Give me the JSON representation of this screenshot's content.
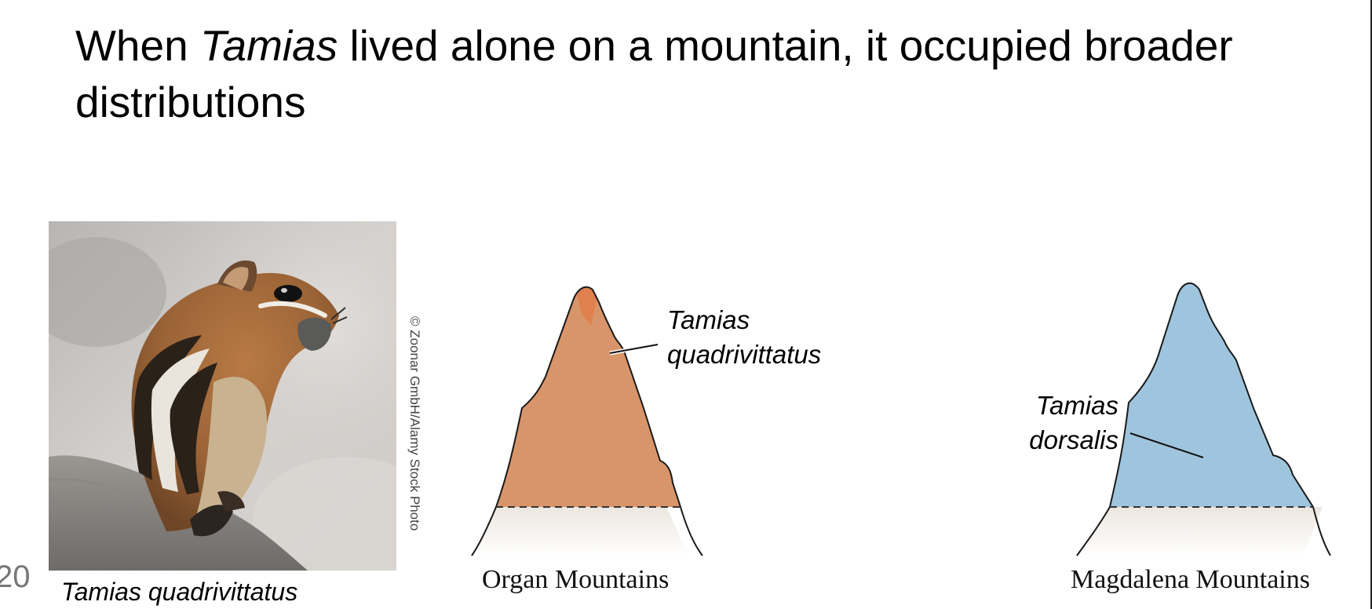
{
  "slide": {
    "title_part1": "When ",
    "title_italic": "Tamias",
    "title_part2": " lived alone on a mountain, it occupied broader distributions",
    "page_number": "20"
  },
  "photo": {
    "credit": "© Zoonar GmbH/Alamy Stock Photo",
    "caption": "Tamias quadrivittatus"
  },
  "mountains": [
    {
      "name": "Organ Mountains",
      "species_label_line1": "Tamias",
      "species_label_line2": "quadrivittatus",
      "fill_color": "#d9956a"
    },
    {
      "name": "Magdalena Mountains",
      "species_label_line1": "Tamias",
      "species_label_line2": "dorsalis",
      "fill_color": "#9fc5de"
    }
  ]
}
